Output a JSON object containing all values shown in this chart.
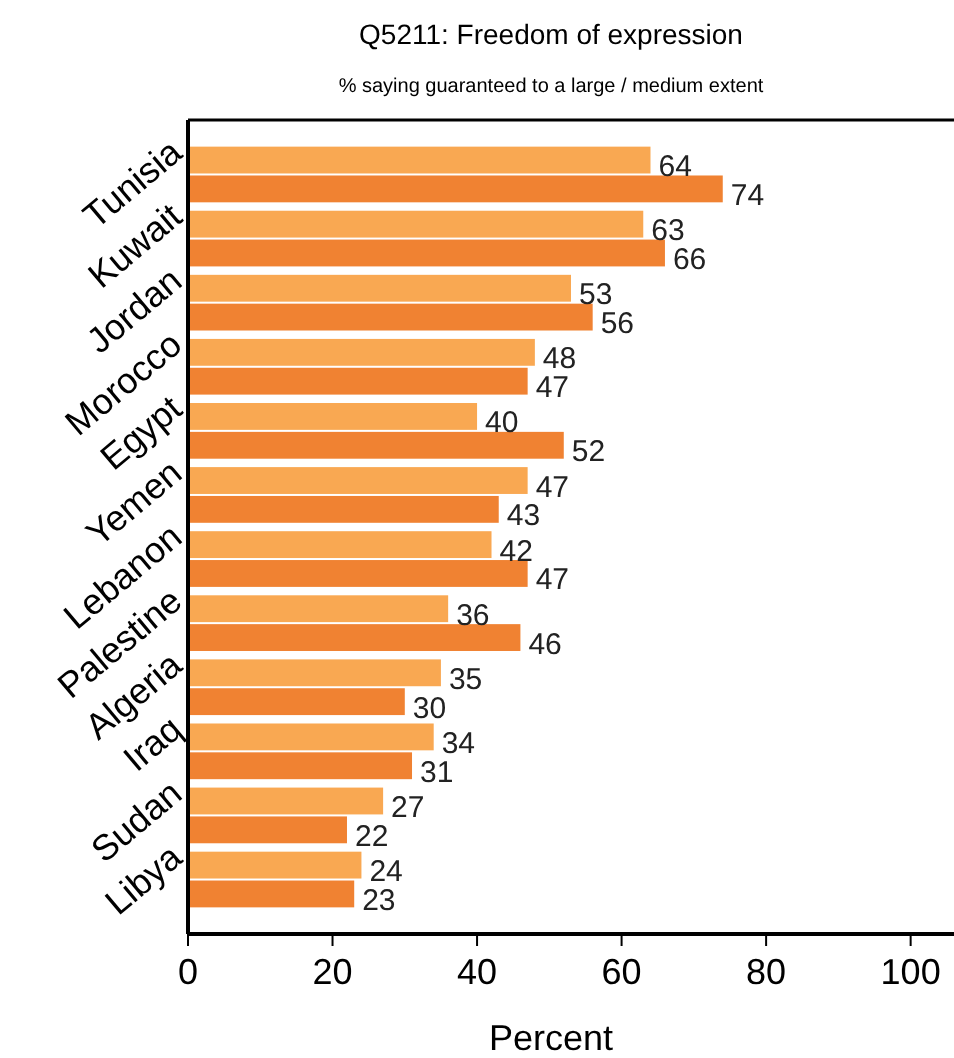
{
  "chart_data": {
    "type": "bar",
    "orientation": "horizontal",
    "title": "Q5211: Freedom of expression",
    "subtitle": "% saying guaranteed to a large / medium extent",
    "xlabel": "Percent",
    "categories": [
      "Tunisia",
      "Kuwait",
      "Jordan",
      "Morocco",
      "Egypt",
      "Yemen",
      "Lebanon",
      "Palestine",
      "Algeria",
      "Iraq",
      "Sudan",
      "Libya"
    ],
    "series": [
      {
        "color": "#f08232",
        "values": [
          74,
          66,
          56,
          47,
          52,
          43,
          47,
          46,
          30,
          31,
          22,
          23
        ]
      },
      {
        "color": "#f9a852",
        "values": [
          64,
          63,
          53,
          48,
          40,
          47,
          42,
          36,
          35,
          34,
          27,
          24
        ]
      }
    ],
    "xlim": [
      0,
      106
    ],
    "xticks": [
      0,
      20,
      40,
      60,
      80,
      100
    ],
    "data_labels": true,
    "grid": false
  }
}
